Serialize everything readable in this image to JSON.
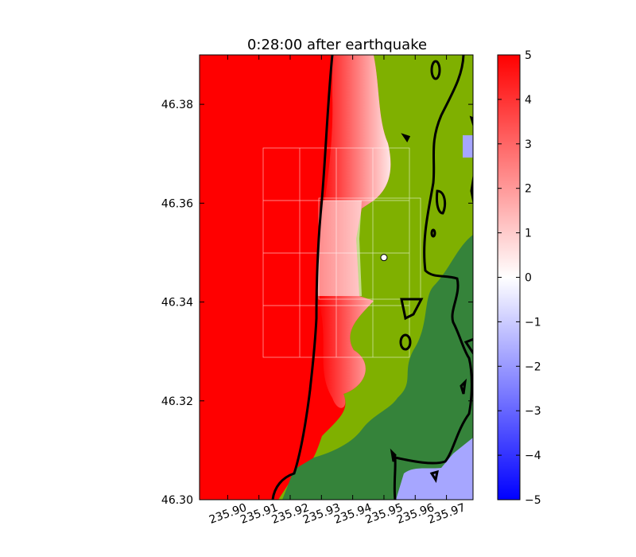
{
  "chart_data": {
    "type": "heatmap",
    "title": "0:28:00 after earthquake",
    "xlabel": "",
    "ylabel": "",
    "xlim": [
      235.891,
      235.9785
    ],
    "ylim": [
      46.3,
      46.39
    ],
    "x_ticks": [
      235.9,
      235.91,
      235.92,
      235.93,
      235.94,
      235.95,
      235.96,
      235.97
    ],
    "x_tick_labels": [
      "235.90",
      "235.91",
      "235.92",
      "235.93",
      "235.94",
      "235.95",
      "235.96",
      "235.97"
    ],
    "y_ticks": [
      46.3,
      46.32,
      46.34,
      46.36,
      46.38
    ],
    "y_tick_labels": [
      "46.30",
      "46.32",
      "46.34",
      "46.36",
      "46.38"
    ],
    "colorbar": {
      "range": [
        -5,
        5
      ],
      "ticks": [
        5,
        4,
        3,
        2,
        1,
        0,
        -1,
        -2,
        -3,
        -4,
        -5
      ],
      "tick_labels": [
        "5",
        "4",
        "3",
        "2",
        "1",
        "0",
        "−1",
        "−2",
        "−3",
        "−4",
        "−5"
      ],
      "colors": {
        "low": "#0000ff",
        "mid": "#ffffff",
        "high": "#ff0000"
      }
    },
    "fill_colors": {
      "water_high": "#ff0000",
      "land_light": "#7fb000",
      "land_dark": "#35833a",
      "negative_region": "#a6a6ff"
    },
    "marker": {
      "x": 235.95,
      "y": 46.349
    },
    "grid": true,
    "legend": "none"
  }
}
